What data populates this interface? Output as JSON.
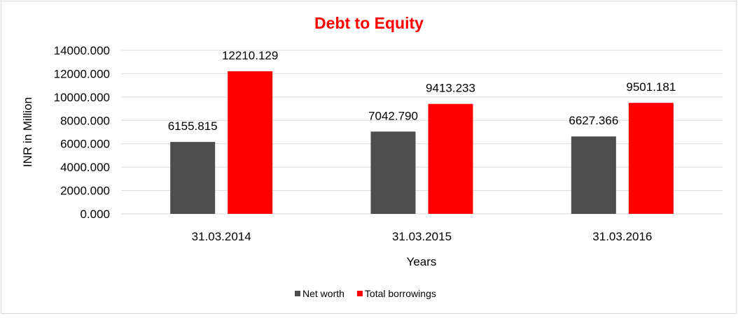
{
  "chart_data": {
    "type": "bar",
    "title": "Debt to Equity",
    "xlabel": "Years",
    "ylabel": "INR in Million",
    "categories": [
      "31.03.2014",
      "31.03.2015",
      "31.03.2016"
    ],
    "series": [
      {
        "name": "Net worth",
        "color": "#4d4d4d",
        "values": [
          6155.815,
          7042.79,
          6627.366
        ],
        "labels": [
          "6155.815",
          "7042.790",
          "6627.366"
        ]
      },
      {
        "name": "Total borrowings",
        "color": "#ff0000",
        "values": [
          12210.129,
          9413.233,
          9501.181
        ],
        "labels": [
          "12210.129",
          "9413.233",
          "9501.181"
        ]
      }
    ],
    "ylim": [
      0,
      14000
    ],
    "yticks": [
      "0.000",
      "2000.000",
      "4000.000",
      "6000.000",
      "8000.000",
      "10000.000",
      "12000.000",
      "14000.000"
    ],
    "grid": true,
    "legend_position": "bottom",
    "title_color": "#ff0000"
  }
}
